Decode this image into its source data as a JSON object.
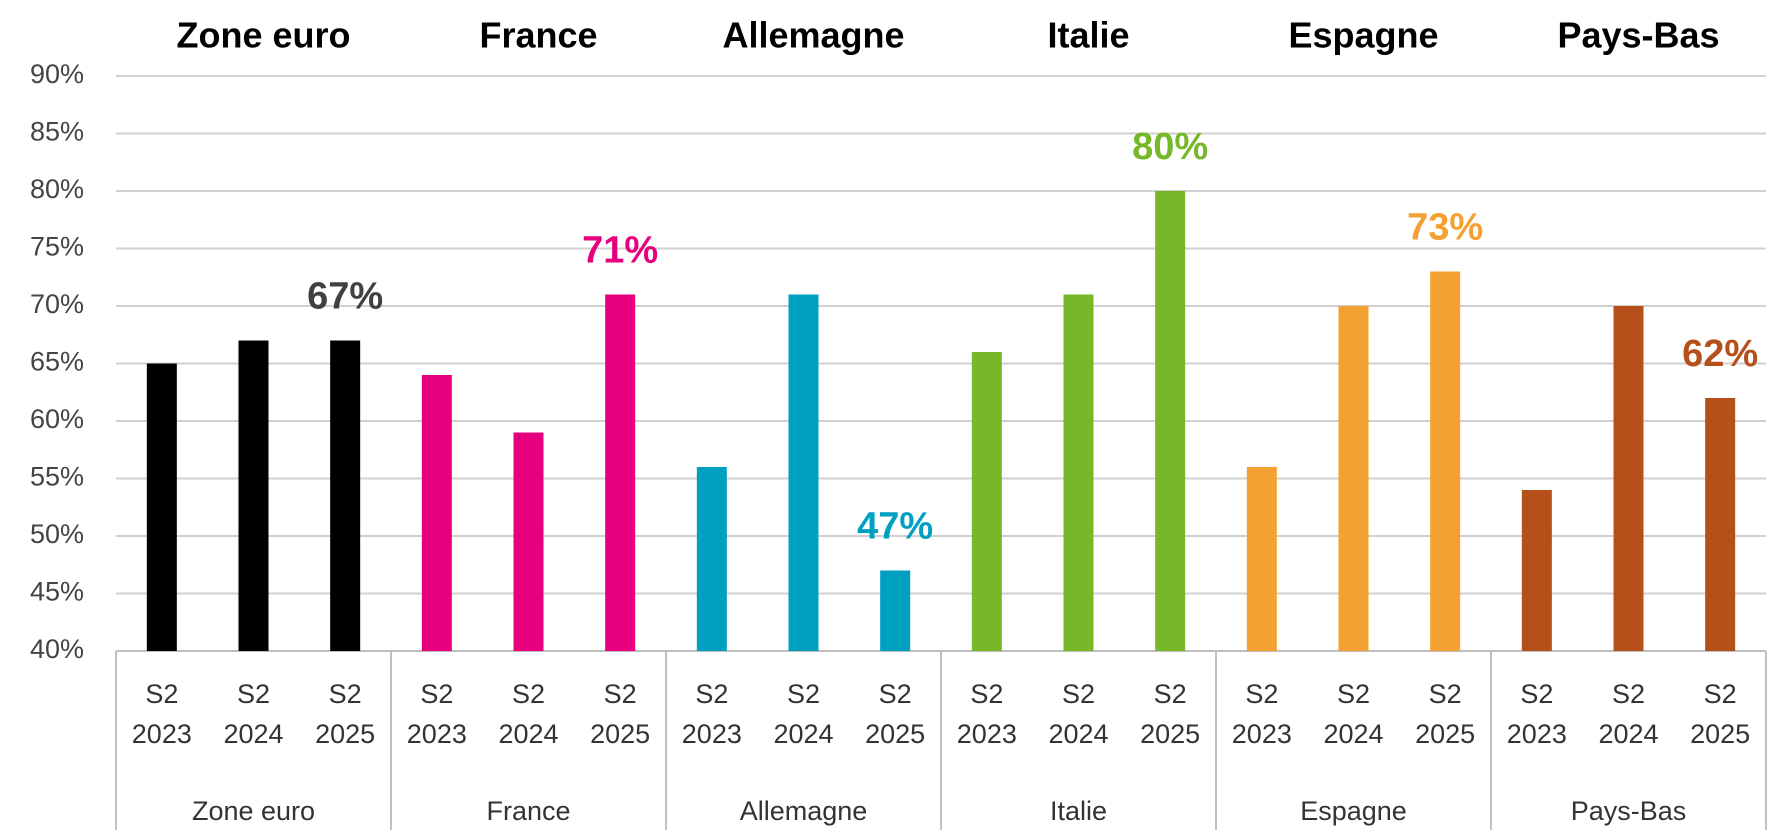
{
  "chart_data": {
    "type": "grouped-bar",
    "categories": [
      "S2 2023",
      "S2 2024",
      "S2 2025"
    ],
    "series": [
      {
        "name": "Zone euro",
        "color": "#000000",
        "values": [
          65,
          67,
          67
        ],
        "value_labels": [
          null,
          null,
          "67%"
        ],
        "label_color": "#404040"
      },
      {
        "name": "France",
        "color": "#e6007e",
        "values": [
          64,
          59,
          71
        ],
        "value_labels": [
          null,
          null,
          "71%"
        ]
      },
      {
        "name": "Allemagne",
        "color": "#00a0c0",
        "values": [
          56,
          71,
          47
        ],
        "value_labels": [
          null,
          null,
          "47%"
        ]
      },
      {
        "name": "Italie",
        "color": "#76b82a",
        "values": [
          66,
          71,
          80
        ],
        "value_labels": [
          null,
          null,
          "80%"
        ]
      },
      {
        "name": "Espagne",
        "color": "#f4a033",
        "values": [
          56,
          70,
          73
        ],
        "value_labels": [
          null,
          null,
          "73%"
        ]
      },
      {
        "name": "Pays-Bas",
        "color": "#b5501a",
        "values": [
          54,
          70,
          62
        ],
        "value_labels": [
          null,
          null,
          "62%"
        ]
      }
    ],
    "ylim": [
      40,
      90
    ],
    "yticks": [
      {
        "value": 40,
        "label": "40%"
      },
      {
        "value": 45,
        "label": "45%"
      },
      {
        "value": 50,
        "label": "50%"
      },
      {
        "value": 55,
        "label": "55%"
      },
      {
        "value": 60,
        "label": "60%"
      },
      {
        "value": 65,
        "label": "65%"
      },
      {
        "value": 70,
        "label": "70%"
      },
      {
        "value": 75,
        "label": "75%"
      },
      {
        "value": 80,
        "label": "80%"
      },
      {
        "value": 85,
        "label": "85%"
      },
      {
        "value": 90,
        "label": "90%"
      }
    ],
    "grid": true
  }
}
